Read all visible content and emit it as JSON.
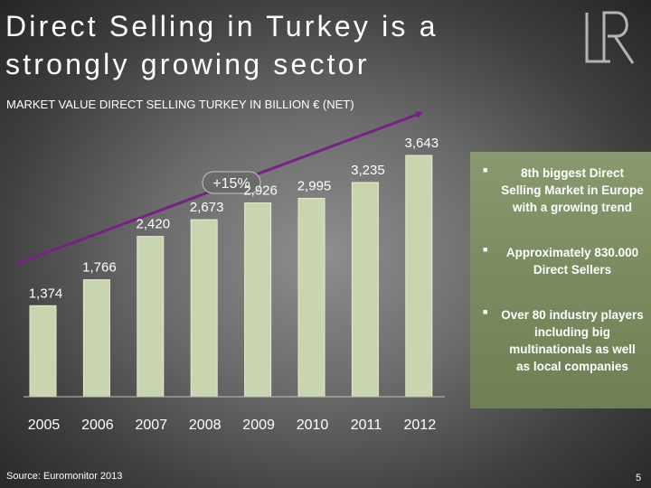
{
  "slide": {
    "title_lines": [
      "Direct Selling in Turkey is a",
      "strongly growing sector"
    ],
    "subtitle": "MARKET VALUE DIRECT SELLING TURKEY IN BILLION € (NET)",
    "source": "Source: Euromonitor 2013",
    "page_number": "5",
    "logo_text": "LR",
    "bullets": [
      "8th biggest Direct Selling Market in Europe with a growing trend",
      "Approximately 830.000 Direct Sellers",
      "Over 80 industry players including big multinationals as well as local companies"
    ]
  },
  "chart_data": {
    "type": "bar",
    "title": "MARKET VALUE DIRECT SELLING TURKEY IN BILLION € (NET)",
    "categories": [
      "2005",
      "2006",
      "2007",
      "2008",
      "2009",
      "2010",
      "2011",
      "2012"
    ],
    "values": [
      1374,
      1766,
      2420,
      2673,
      2926,
      2995,
      3235,
      3643
    ],
    "value_labels": [
      "1,374",
      "1,766",
      "2,420",
      "2,673",
      "2,926",
      "2,995",
      "3,235",
      "3,643"
    ],
    "growth_annotation": "+15%",
    "ylim": [
      0,
      3643
    ],
    "grid": false,
    "colors": {
      "bar": "#c8d5ae",
      "bar_edge": "#e4ecd2",
      "arrow": "#7a1f8a",
      "axis": "#bfbfbf",
      "label": "#ffffff"
    }
  }
}
